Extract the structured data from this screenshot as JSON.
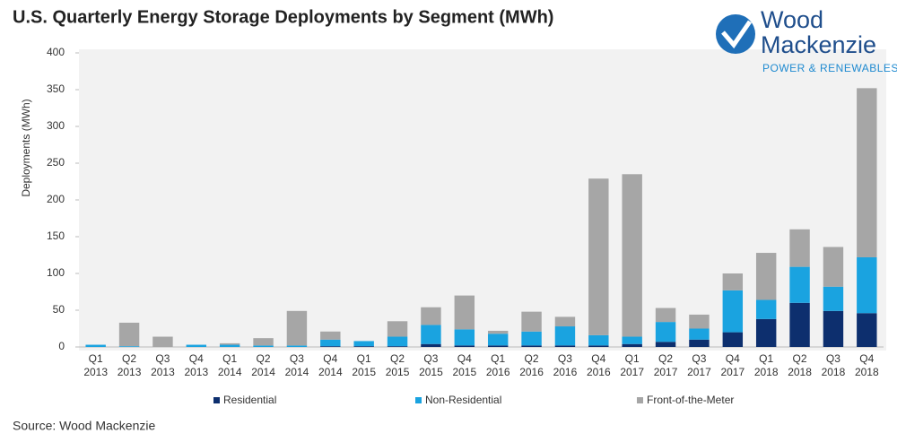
{
  "chart_data": {
    "type": "stacked_bar",
    "title": "U.S. Quarterly Energy Storage Deployments by Segment (MWh)",
    "ylabel": "Deployments (MWh)",
    "source": "Source: Wood Mackenzie",
    "logo": {
      "name": [
        "Wood",
        "Mackenzie"
      ],
      "tagline": "POWER & RENEWABLES"
    },
    "categories": [
      "Q1 2013",
      "Q2 2013",
      "Q3 2013",
      "Q4 2013",
      "Q1 2014",
      "Q2 2014",
      "Q3 2014",
      "Q4 2014",
      "Q1 2015",
      "Q2 2015",
      "Q3 2015",
      "Q4 2015",
      "Q1 2016",
      "Q2 2016",
      "Q3 2016",
      "Q4 2016",
      "Q1 2017",
      "Q2 2017",
      "Q3 2017",
      "Q4 2017",
      "Q1 2018",
      "Q2 2018",
      "Q3 2018",
      "Q4 2018"
    ],
    "series": [
      {
        "name": "Residential",
        "color": "#0d2f6e",
        "values": [
          0,
          0,
          0,
          0,
          0,
          0,
          0,
          1,
          1,
          1,
          4,
          2,
          2,
          2,
          2,
          2,
          4,
          7,
          10,
          20,
          38,
          60,
          49,
          46
        ]
      },
      {
        "name": "Non-Residential",
        "color": "#1aa3e0",
        "values": [
          3,
          1,
          0,
          3,
          3,
          2,
          2,
          9,
          7,
          13,
          26,
          22,
          16,
          19,
          26,
          14,
          10,
          27,
          15,
          57,
          26,
          49,
          33,
          76
        ]
      },
      {
        "name": "Front-of-the-Meter",
        "color": "#a6a6a6",
        "values": [
          0,
          32,
          14,
          0,
          2,
          10,
          47,
          11,
          0,
          21,
          24,
          46,
          4,
          27,
          13,
          213,
          221,
          19,
          19,
          23,
          64,
          51,
          54,
          230
        ]
      }
    ],
    "ylim": [
      0,
      400
    ],
    "yticks": [
      0,
      50,
      100,
      150,
      200,
      250,
      300,
      350,
      400
    ],
    "legend": "bottom"
  }
}
